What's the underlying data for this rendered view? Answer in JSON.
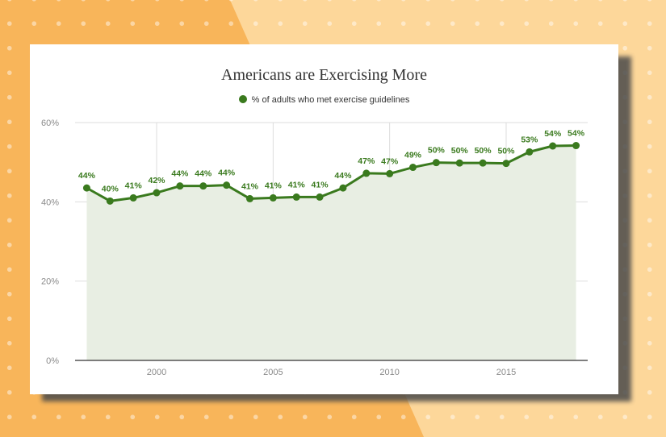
{
  "chart_data": {
    "type": "area",
    "title": "Americans are Exercising More",
    "xlabel": "",
    "ylabel": "",
    "legend_position": "top",
    "grid": true,
    "xlim": [
      1996.5,
      2018.5
    ],
    "ylim": [
      0,
      60
    ],
    "x_ticks": [
      2000,
      2005,
      2010,
      2015
    ],
    "y_ticks": [
      0,
      20,
      40,
      60
    ],
    "y_tick_labels": [
      "0%",
      "20%",
      "40%",
      "60%"
    ],
    "x_tick_labels": [
      "2000",
      "2005",
      "2010",
      "2015"
    ],
    "series": [
      {
        "name": "% of adults who met exercise guidelines",
        "x": [
          1997,
          1998,
          1999,
          2000,
          2001,
          2002,
          2003,
          2004,
          2005,
          2006,
          2007,
          2008,
          2009,
          2010,
          2011,
          2012,
          2013,
          2014,
          2015,
          2016,
          2017,
          2018
        ],
        "values": [
          43.5,
          40.2,
          41,
          42.3,
          44,
          44,
          44.2,
          40.8,
          41,
          41.2,
          41.2,
          43.5,
          47.2,
          47.1,
          48.7,
          49.9,
          49.8,
          49.8,
          49.7,
          52.6,
          54.1,
          54.2
        ],
        "labels": [
          "44%",
          "40%",
          "41%",
          "42%",
          "44%",
          "44%",
          "44%",
          "41%",
          "41%",
          "41%",
          "41%",
          "44%",
          "47%",
          "47%",
          "49%",
          "50%",
          "50%",
          "50%",
          "50%",
          "53%",
          "54%",
          "54%"
        ]
      }
    ],
    "colors": {
      "line": "#3a7a1e",
      "area": "#e8eee3",
      "grid": "#dddddd",
      "axis": "#333333"
    }
  }
}
